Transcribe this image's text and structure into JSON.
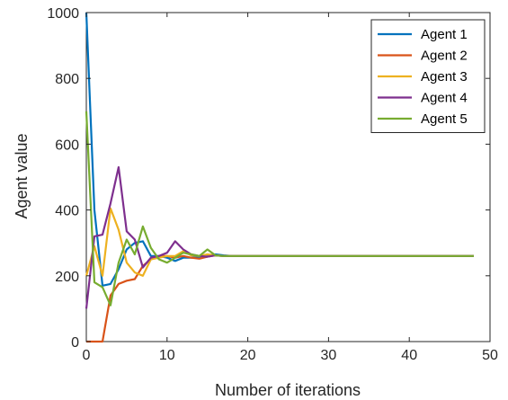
{
  "chart_data": {
    "type": "line",
    "title": "",
    "xlabel": "Number of iterations",
    "ylabel": "Agent value",
    "xlim": [
      0,
      50
    ],
    "ylim": [
      0,
      1000
    ],
    "xticks": [
      0,
      10,
      20,
      30,
      40,
      50
    ],
    "yticks": [
      0,
      200,
      400,
      600,
      800,
      1000
    ],
    "grid": false,
    "legend_position": "top-right",
    "x": [
      0,
      1,
      2,
      3,
      4,
      5,
      6,
      7,
      8,
      9,
      10,
      11,
      12,
      13,
      14,
      15,
      16,
      17,
      18,
      19,
      20,
      21,
      22,
      23,
      24,
      25,
      26,
      27,
      28,
      29,
      30,
      31,
      32,
      33,
      34,
      35,
      36,
      37,
      38,
      39,
      40,
      41,
      42,
      43,
      44,
      45,
      46,
      47,
      48
    ],
    "series": [
      {
        "name": "Agent 1",
        "color": "#0072BD",
        "values": [
          1000,
          400,
          170,
          175,
          220,
          280,
          300,
          305,
          260,
          260,
          255,
          245,
          255,
          255,
          258,
          262,
          265,
          262,
          260,
          260,
          260,
          260,
          260,
          260,
          260,
          260,
          260,
          260,
          260,
          260,
          260,
          260,
          260,
          260,
          260,
          260,
          260,
          260,
          260,
          260,
          260,
          260,
          260,
          260,
          260,
          260,
          260,
          260,
          260
        ]
      },
      {
        "name": "Agent 2",
        "color": "#D95319",
        "values": [
          0,
          0,
          0,
          140,
          175,
          185,
          190,
          230,
          250,
          260,
          260,
          255,
          260,
          255,
          252,
          258,
          262,
          260,
          260,
          260,
          260,
          260,
          260,
          260,
          260,
          260,
          260,
          260,
          260,
          260,
          260,
          260,
          260,
          260,
          260,
          260,
          260,
          260,
          260,
          260,
          260,
          260,
          260,
          260,
          260,
          260,
          260,
          260,
          260
        ]
      },
      {
        "name": "Agent 3",
        "color": "#EDB120",
        "values": [
          200,
          290,
          200,
          405,
          340,
          240,
          210,
          200,
          250,
          255,
          260,
          260,
          275,
          262,
          260,
          265,
          262,
          260,
          260,
          260,
          260,
          260,
          260,
          260,
          260,
          260,
          260,
          260,
          260,
          260,
          260,
          260,
          260,
          260,
          260,
          260,
          260,
          260,
          260,
          260,
          260,
          260,
          260,
          260,
          260,
          260,
          260,
          260,
          260
        ]
      },
      {
        "name": "Agent 4",
        "color": "#7E2F8E",
        "values": [
          100,
          320,
          325,
          420,
          530,
          335,
          310,
          225,
          255,
          260,
          270,
          305,
          280,
          265,
          260,
          258,
          262,
          260,
          260,
          260,
          260,
          260,
          260,
          260,
          260,
          260,
          260,
          260,
          260,
          260,
          260,
          260,
          260,
          260,
          260,
          260,
          260,
          260,
          260,
          260,
          260,
          260,
          260,
          260,
          260,
          260,
          260,
          260,
          260
        ]
      },
      {
        "name": "Agent 5",
        "color": "#77AC30",
        "values": [
          700,
          180,
          165,
          110,
          240,
          310,
          265,
          350,
          285,
          250,
          240,
          255,
          270,
          265,
          260,
          280,
          262,
          260,
          260,
          260,
          260,
          260,
          260,
          260,
          260,
          260,
          260,
          260,
          260,
          260,
          260,
          260,
          260,
          260,
          260,
          260,
          260,
          260,
          260,
          260,
          260,
          260,
          260,
          260,
          260,
          260,
          260,
          260,
          260
        ]
      }
    ]
  }
}
